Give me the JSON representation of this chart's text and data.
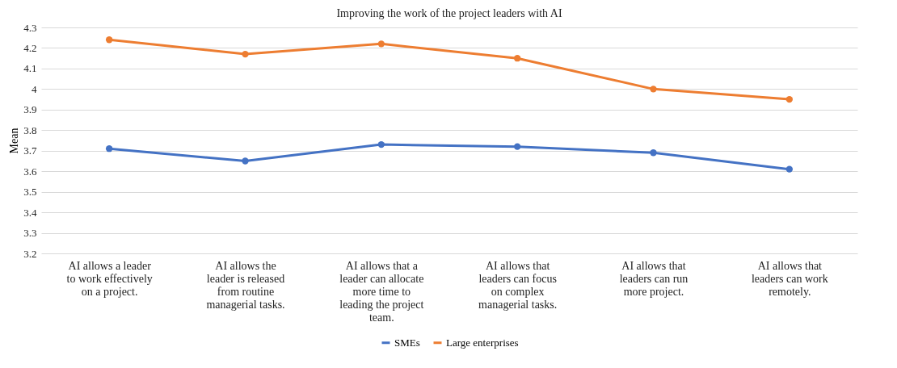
{
  "chart_data": {
    "type": "line",
    "title": "Improving the work of the project leaders with AI",
    "ylabel": "Mean",
    "categories": [
      "AI allows a leader to work effectively on a project.",
      "AI allows the leader is released from routine managerial tasks.",
      "AI allows that a leader can allocate more time to leading the project team.",
      "AI allows that leaders can focus on complex managerial tasks.",
      "AI allows that leaders can run more project.",
      "AI allows that leaders can work remotely."
    ],
    "series": [
      {
        "name": "SMEs",
        "color": "#4472c4",
        "values": [
          3.71,
          3.65,
          3.73,
          3.72,
          3.69,
          3.61
        ]
      },
      {
        "name": "Large enterprises",
        "color": "#ed7d31",
        "values": [
          4.24,
          4.17,
          4.22,
          4.15,
          4.0,
          3.95
        ]
      }
    ],
    "ylim": [
      3.2,
      4.3
    ],
    "yticks": [
      3.2,
      3.3,
      3.4,
      3.5,
      3.6,
      3.7,
      3.8,
      3.9,
      4,
      4.1,
      4.2,
      4.3
    ],
    "grid": "y",
    "legend": "bottom",
    "marker": "circle",
    "line_style": "solid"
  }
}
